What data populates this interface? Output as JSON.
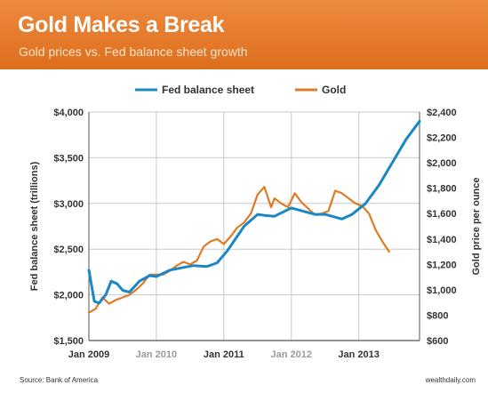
{
  "header": {
    "title": "Gold Makes a Break",
    "subtitle": "Gold prices vs. Fed balance sheet growth"
  },
  "footer": {
    "source": "Source: Bank of America",
    "credit": "wealthdaily.com"
  },
  "colors": {
    "header_bg": "#e8792b",
    "fed": "#1a87c6",
    "gold": "#e07b24"
  },
  "chart_data": {
    "type": "line",
    "legend_position": "top",
    "grid": "horizontal and vertical gridlines",
    "xticks": [
      "Jan 2009",
      "Jan 2010",
      "Jan 2011",
      "Jan 2012",
      "Jan 2013"
    ],
    "x_range": [
      2009.0,
      2013.9
    ],
    "y_left": {
      "label": "Fed balance sheet (trillions)",
      "range": [
        1500,
        4000
      ],
      "ticks": [
        "$1,500",
        "$2,000",
        "$2,500",
        "$3,000",
        "$3,500",
        "$4,000"
      ]
    },
    "y_right": {
      "label": "Gold price per ounce",
      "range": [
        600,
        2400
      ],
      "ticks": [
        "$600",
        "$800",
        "$1,000",
        "$1,200",
        "$1,400",
        "$1,600",
        "$1,800",
        "$2,000",
        "$2,200",
        "$2,400"
      ]
    },
    "series": [
      {
        "name": "Fed balance sheet",
        "axis": "left",
        "x": [
          2009.0,
          2009.08,
          2009.15,
          2009.25,
          2009.33,
          2009.42,
          2009.5,
          2009.6,
          2009.75,
          2009.9,
          2010.0,
          2010.2,
          2010.4,
          2010.55,
          2010.75,
          2010.9,
          2011.05,
          2011.3,
          2011.5,
          2011.6,
          2011.75,
          2012.0,
          2012.25,
          2012.35,
          2012.5,
          2012.75,
          2012.9,
          2013.1,
          2013.3,
          2013.5,
          2013.7,
          2013.9
        ],
        "y": [
          2270,
          1930,
          1910,
          2000,
          2150,
          2120,
          2050,
          2030,
          2150,
          2210,
          2200,
          2270,
          2300,
          2320,
          2310,
          2350,
          2480,
          2750,
          2880,
          2870,
          2860,
          2950,
          2900,
          2880,
          2880,
          2830,
          2880,
          3000,
          3200,
          3450,
          3700,
          3900
        ]
      },
      {
        "name": "Gold",
        "axis": "right",
        "x": [
          2009.0,
          2009.1,
          2009.2,
          2009.3,
          2009.4,
          2009.5,
          2009.6,
          2009.7,
          2009.8,
          2009.9,
          2010.0,
          2010.1,
          2010.2,
          2010.3,
          2010.4,
          2010.5,
          2010.6,
          2010.7,
          2010.8,
          2010.9,
          2011.0,
          2011.1,
          2011.2,
          2011.3,
          2011.4,
          2011.5,
          2011.6,
          2011.7,
          2011.75,
          2011.85,
          2011.95,
          2012.05,
          2012.15,
          2012.25,
          2012.35,
          2012.45,
          2012.55,
          2012.65,
          2012.75,
          2012.85,
          2012.95,
          2013.05,
          2013.15,
          2013.25,
          2013.35,
          2013.45
        ],
        "y": [
          820,
          850,
          940,
          890,
          920,
          940,
          960,
          1000,
          1050,
          1120,
          1120,
          1120,
          1150,
          1190,
          1220,
          1200,
          1230,
          1340,
          1380,
          1400,
          1360,
          1420,
          1490,
          1530,
          1600,
          1750,
          1810,
          1650,
          1720,
          1680,
          1650,
          1760,
          1690,
          1640,
          1590,
          1600,
          1620,
          1780,
          1760,
          1720,
          1680,
          1660,
          1600,
          1470,
          1380,
          1300
        ]
      }
    ]
  }
}
